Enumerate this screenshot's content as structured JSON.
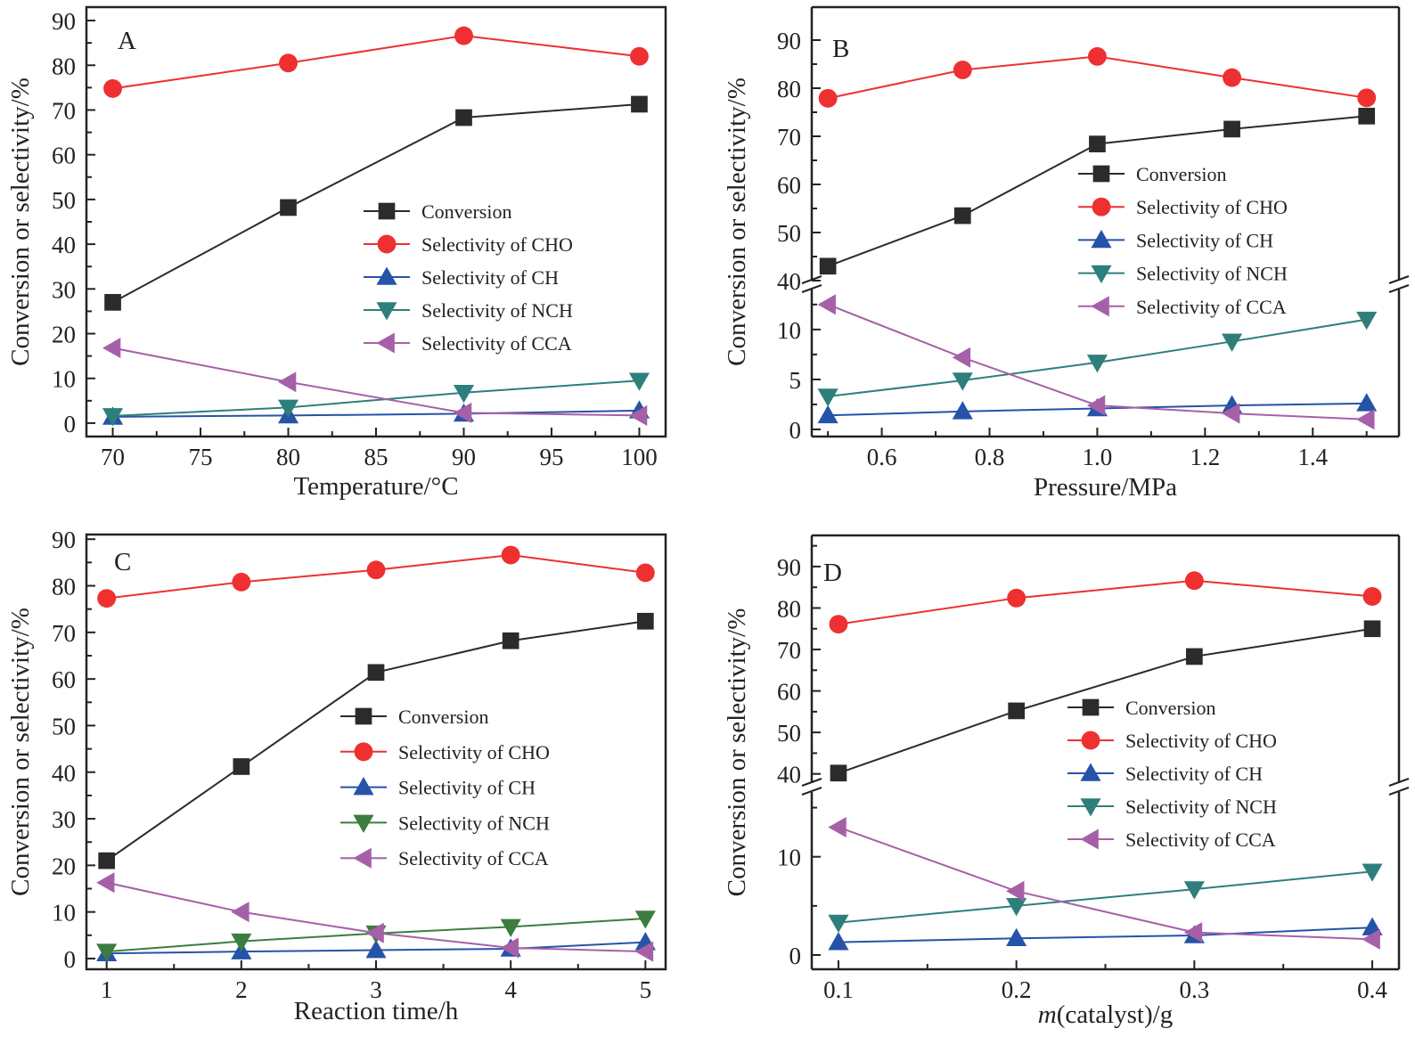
{
  "figure": {
    "series_styles": [
      {
        "key": "conversion",
        "marker": "square",
        "color": "#2b2b2b"
      },
      {
        "key": "cho",
        "marker": "circle",
        "color": "#ee3030"
      },
      {
        "key": "ch",
        "marker": "triangle-up",
        "color": "#2553a8"
      },
      {
        "key": "nch",
        "marker": "triangle-down",
        "color": "#2e7f7c"
      },
      {
        "key": "cca",
        "marker": "triangle-left",
        "color": "#a660a8"
      }
    ],
    "nch_color_panel_c": "#3b7d3f"
  },
  "chart_data": [
    {
      "panel": "A",
      "type": "line",
      "title": "",
      "xlabel": "Temperature/°C",
      "ylabel": "Conversion or selectivity/%",
      "xlim": [
        68.5,
        101.5
      ],
      "ylim": [
        -3,
        93
      ],
      "x_ticks": [
        70,
        75,
        80,
        85,
        90,
        95,
        100
      ],
      "x_tick_labels": [
        "70",
        "75",
        "80",
        "85",
        "90",
        "95",
        "100"
      ],
      "y_ticks": [
        0,
        10,
        20,
        30,
        40,
        50,
        60,
        70,
        80,
        90
      ],
      "y_tick_labels": [
        "0",
        "10",
        "20",
        "30",
        "40",
        "50",
        "60",
        "70",
        "80",
        "90"
      ],
      "legend_position": "center-right",
      "x": [
        70,
        80,
        90,
        100
      ],
      "series": [
        {
          "name": "Conversion",
          "values": [
            27.0,
            48.2,
            68.3,
            71.3
          ]
        },
        {
          "name": "Selectivity of CHO",
          "values": [
            74.8,
            80.5,
            86.6,
            82.0
          ]
        },
        {
          "name": "Selectivity of CH",
          "values": [
            1.4,
            1.7,
            2.1,
            2.8
          ]
        },
        {
          "name": "Selectivity of NCH",
          "values": [
            1.6,
            3.5,
            6.8,
            9.5
          ]
        },
        {
          "name": "Selectivity of CCA",
          "values": [
            16.8,
            9.2,
            2.3,
            1.7
          ]
        }
      ]
    },
    {
      "panel": "B",
      "type": "line",
      "title": "",
      "xlabel": "Pressure/MPa",
      "ylabel": "Conversion or selectivity/%",
      "xlim": [
        0.47,
        1.56
      ],
      "broken_axis": true,
      "ylim_lower": [
        0,
        14
      ],
      "ylim_upper": [
        40,
        95
      ],
      "x_ticks": [
        0.6,
        0.8,
        1.0,
        1.2,
        1.4
      ],
      "x_tick_labels": [
        "0.6",
        "0.8",
        "1.0",
        "1.2",
        "1.4"
      ],
      "y_ticks_lower": [
        0,
        5,
        10
      ],
      "y_tick_labels_lower": [
        "0",
        "5",
        "10"
      ],
      "y_ticks_upper": [
        40,
        50,
        60,
        70,
        80,
        90
      ],
      "y_tick_labels_upper": [
        "40",
        "50",
        "60",
        "70",
        "80",
        "90"
      ],
      "legend_position": "center-right",
      "x": [
        0.5,
        0.75,
        1.0,
        1.25,
        1.5
      ],
      "series": [
        {
          "name": "Conversion",
          "values": [
            43.0,
            53.5,
            68.4,
            71.5,
            74.2
          ]
        },
        {
          "name": "Selectivity of CHO",
          "values": [
            77.9,
            83.8,
            86.6,
            82.2,
            78.0
          ]
        },
        {
          "name": "Selectivity of CH",
          "values": [
            1.4,
            1.8,
            2.1,
            2.4,
            2.6
          ]
        },
        {
          "name": "Selectivity of NCH",
          "values": [
            3.3,
            4.9,
            6.7,
            8.8,
            11.0
          ]
        },
        {
          "name": "Selectivity of CCA",
          "values": [
            12.5,
            7.2,
            2.4,
            1.6,
            1.0
          ]
        }
      ]
    },
    {
      "panel": "C",
      "type": "line",
      "title": "",
      "xlabel": "Reaction time/h",
      "ylabel": "Conversion or selectivity/%",
      "xlim": [
        0.85,
        5.15
      ],
      "ylim": [
        -2.3,
        91
      ],
      "x_ticks": [
        1,
        2,
        3,
        4,
        5
      ],
      "x_tick_labels": [
        "1",
        "2",
        "3",
        "4",
        "5"
      ],
      "y_ticks": [
        0,
        10,
        20,
        30,
        40,
        50,
        60,
        70,
        80,
        90
      ],
      "y_tick_labels": [
        "0",
        "10",
        "20",
        "30",
        "40",
        "50",
        "60",
        "70",
        "80",
        "90"
      ],
      "legend_position": "center-right",
      "x": [
        1,
        2,
        3,
        4,
        5
      ],
      "series": [
        {
          "name": "Conversion",
          "values": [
            21.0,
            41.2,
            61.4,
            68.2,
            72.4
          ]
        },
        {
          "name": "Selectivity of CHO",
          "values": [
            77.3,
            80.8,
            83.4,
            86.6,
            82.8
          ]
        },
        {
          "name": "Selectivity of CH",
          "values": [
            1.1,
            1.5,
            1.8,
            2.1,
            3.5
          ]
        },
        {
          "name": "Selectivity of NCH",
          "values": [
            1.5,
            3.7,
            5.4,
            6.8,
            8.6
          ]
        },
        {
          "name": "Selectivity of CCA",
          "values": [
            16.3,
            10.0,
            5.5,
            2.3,
            1.5
          ]
        }
      ]
    },
    {
      "panel": "D",
      "type": "line",
      "title": "",
      "xlabel": "m(catalyst)/g",
      "xlabel_italic_part": "m",
      "xlabel_rest": "(catalyst)/g",
      "ylabel": "Conversion or selectivity/%",
      "xlim": [
        0.085,
        0.415
      ],
      "broken_axis": true,
      "ylim_lower": [
        0,
        16.5
      ],
      "ylim_upper": [
        38,
        96
      ],
      "x_ticks": [
        0.1,
        0.2,
        0.3,
        0.4
      ],
      "x_tick_labels": [
        "0.1",
        "0.2",
        "0.3",
        "0.4"
      ],
      "y_ticks_lower": [
        0,
        10
      ],
      "y_tick_labels_lower": [
        "0",
        "10"
      ],
      "y_ticks_upper": [
        40,
        50,
        60,
        70,
        80,
        90
      ],
      "y_tick_labels_upper": [
        "40",
        "50",
        "60",
        "70",
        "80",
        "90"
      ],
      "legend_position": "center-right",
      "x": [
        0.1,
        0.2,
        0.3,
        0.4
      ],
      "series": [
        {
          "name": "Conversion",
          "values": [
            40.2,
            55.2,
            68.3,
            75.0
          ]
        },
        {
          "name": "Selectivity of CHO",
          "values": [
            76.1,
            82.4,
            86.6,
            82.8
          ]
        },
        {
          "name": "Selectivity of CH",
          "values": [
            1.3,
            1.7,
            2.0,
            2.8
          ]
        },
        {
          "name": "Selectivity of NCH",
          "values": [
            3.3,
            5.0,
            6.7,
            8.5
          ]
        },
        {
          "name": "Selectivity of CCA",
          "values": [
            13.0,
            6.5,
            2.3,
            1.6
          ]
        }
      ]
    }
  ]
}
